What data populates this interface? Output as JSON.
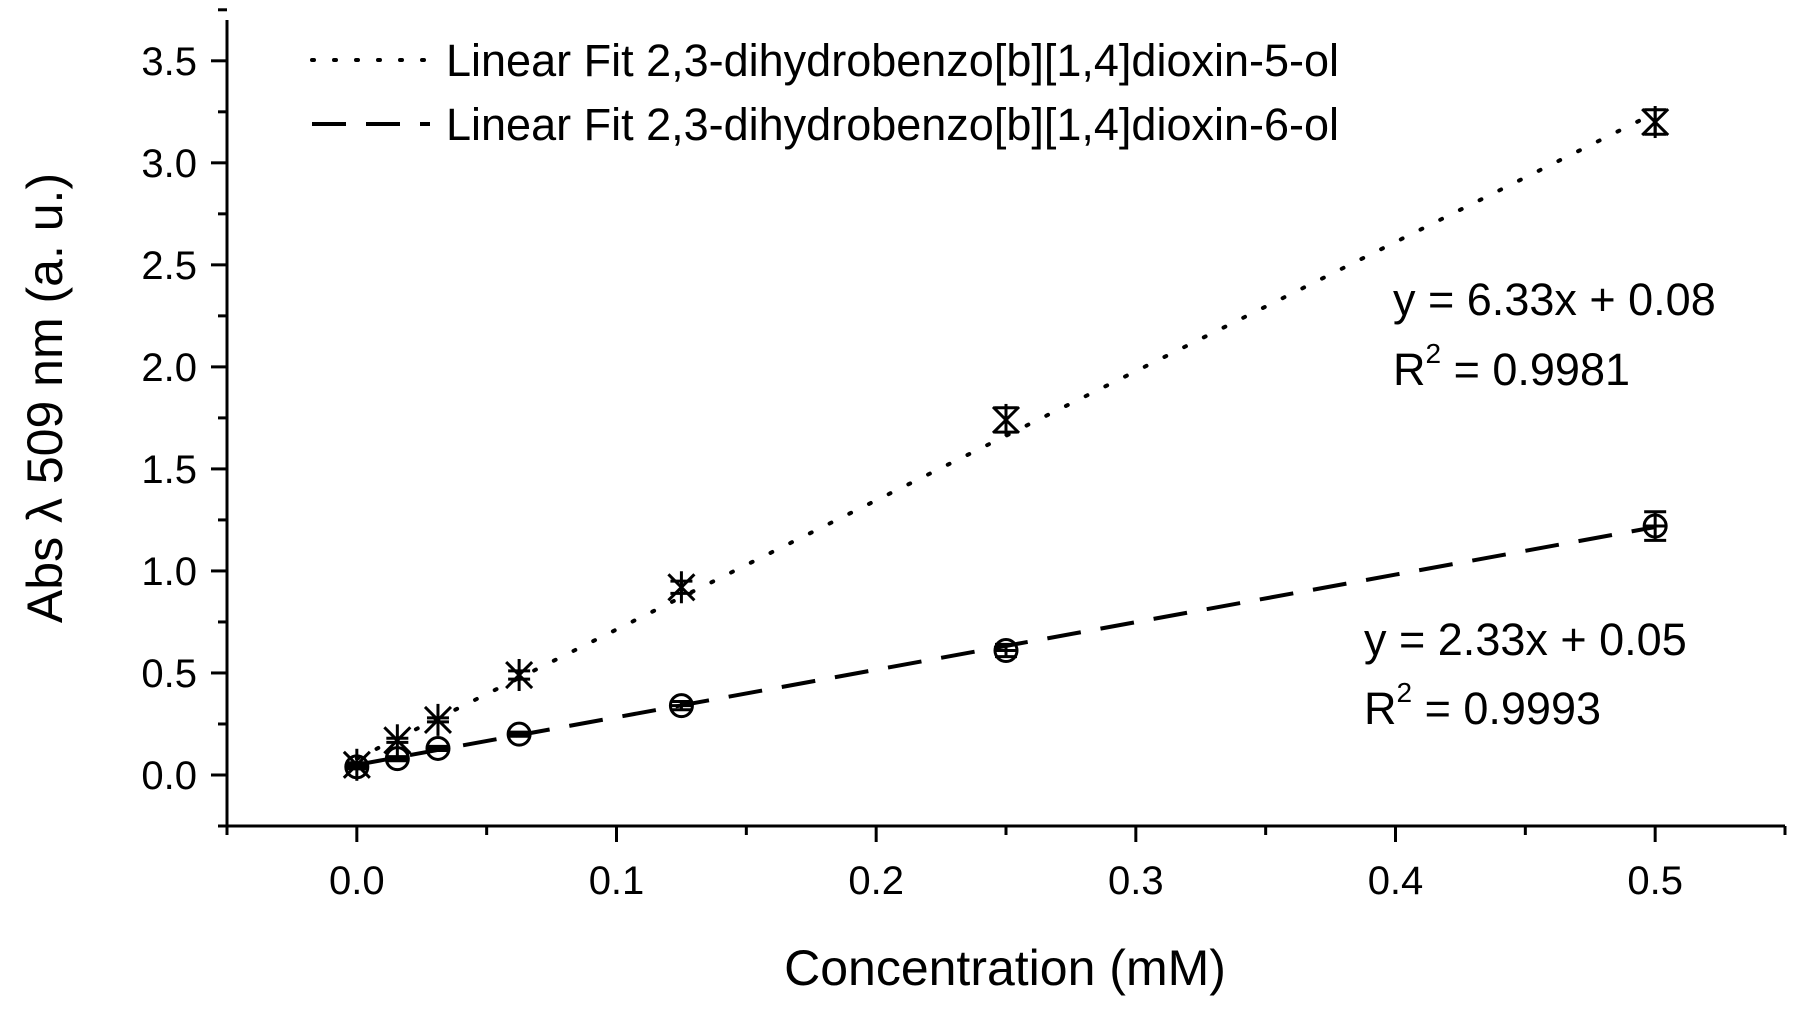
{
  "chart_data": {
    "type": "scatter",
    "xlabel": "Concentration (mM)",
    "ylabel": "Abs λ 509 nm (a. u.)",
    "xlim": [
      -0.05,
      0.55
    ],
    "ylim": [
      -0.25,
      3.7
    ],
    "x_ticks": [
      0.0,
      0.1,
      0.2,
      0.3,
      0.4,
      0.5
    ],
    "x_tick_labels": [
      "0.0",
      "0.1",
      "0.2",
      "0.3",
      "0.4",
      "0.5"
    ],
    "y_ticks": [
      0.0,
      0.5,
      1.0,
      1.5,
      2.0,
      2.5,
      3.0,
      3.5
    ],
    "y_tick_labels": [
      "0.0",
      "0.5",
      "1.0",
      "1.5",
      "2.0",
      "2.5",
      "3.0",
      "3.5"
    ],
    "grid": false,
    "legend_position": "top-left",
    "series": [
      {
        "name": "Linear Fit 2,3-dihydrobenzo[b][1,4]dioxin-5-ol",
        "marker": "star",
        "line_style": "dotted",
        "x": [
          0.0,
          0.0156,
          0.03125,
          0.0625,
          0.125,
          0.25,
          0.5
        ],
        "y": [
          0.05,
          0.17,
          0.27,
          0.49,
          0.92,
          1.74,
          3.2
        ],
        "y_err": [
          0.01,
          0.01,
          0.01,
          0.02,
          0.03,
          0.06,
          0.06
        ],
        "fit_x": [
          0.0,
          0.5
        ],
        "fit_y": [
          0.08,
          3.245
        ],
        "equation": "y = 6.33x + 0.08",
        "r2_label": "R",
        "r2_sup": "2",
        "r2_value": " = 0.9981"
      },
      {
        "name": "Linear Fit 2,3-dihydrobenzo[b][1,4]dioxin-6-ol",
        "marker": "circle",
        "line_style": "dashed",
        "x": [
          0.0,
          0.0156,
          0.03125,
          0.0625,
          0.125,
          0.25,
          0.5
        ],
        "y": [
          0.04,
          0.08,
          0.13,
          0.2,
          0.34,
          0.61,
          1.22
        ],
        "y_err": [
          0.01,
          0.01,
          0.01,
          0.01,
          0.02,
          0.03,
          0.07
        ],
        "fit_x": [
          0.0,
          0.5
        ],
        "fit_y": [
          0.05,
          1.215
        ],
        "equation": "y = 2.33x + 0.05",
        "r2_label": "R",
        "r2_sup": "2",
        "r2_value": " = 0.9993"
      }
    ]
  }
}
